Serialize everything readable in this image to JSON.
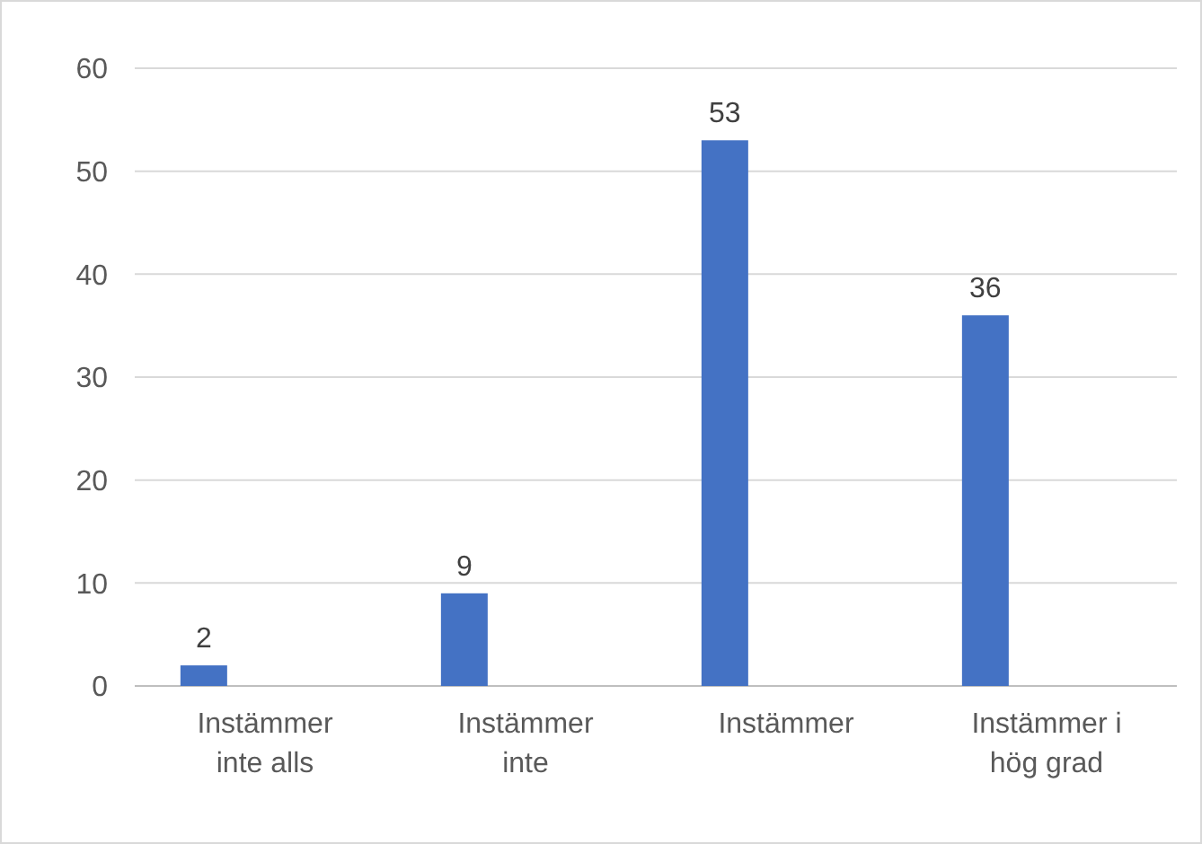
{
  "chart_data": {
    "type": "bar",
    "categories": [
      "Instämmer inte alls",
      "Instämmer inte",
      "Instämmer",
      "Instämmer i hög grad"
    ],
    "values": [
      2,
      9,
      53,
      36
    ],
    "color": "#4472c4",
    "ylim": [
      0,
      60
    ],
    "yticks": [
      0,
      10,
      20,
      30,
      40,
      50,
      60
    ],
    "grid": "y",
    "data_labels": true
  }
}
